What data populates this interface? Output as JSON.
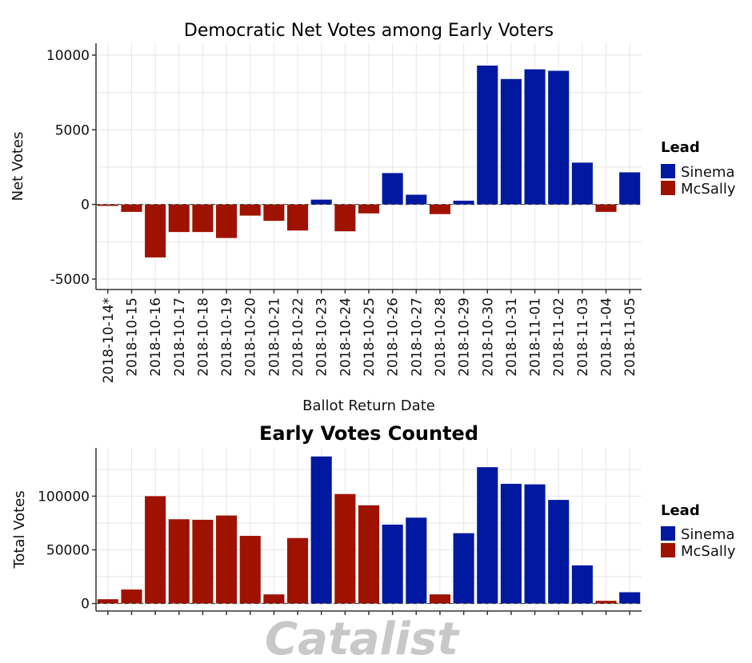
{
  "colors": {
    "Sinema": "#0019a0",
    "McSally": "#a01200",
    "grid": "#e6e6e6",
    "axis": "#333333"
  },
  "legend": {
    "title": "Lead",
    "entries": [
      {
        "name": "Sinema",
        "color": "#0019a0"
      },
      {
        "name": "McSally",
        "color": "#a01200"
      }
    ]
  },
  "watermark": "Catalist",
  "chart_data": [
    {
      "type": "bar",
      "title": "Democratic Net Votes among Early Voters",
      "xlabel": "Ballot Return Date",
      "ylabel": "Net Votes",
      "ylim": [
        -5700,
        10800
      ],
      "yticks": [
        -5000,
        0,
        5000,
        10000
      ],
      "yticklabels": [
        "-5000",
        "0",
        "5000",
        "10000"
      ],
      "grid": true,
      "legend_position": "right",
      "categories": [
        "2018-10-14*",
        "2018-10-15",
        "2018-10-16",
        "2018-10-17",
        "2018-10-18",
        "2018-10-19",
        "2018-10-20",
        "2018-10-21",
        "2018-10-22",
        "2018-10-23",
        "2018-10-24",
        "2018-10-25",
        "2018-10-26",
        "2018-10-27",
        "2018-10-28",
        "2018-10-29",
        "2018-10-30",
        "2018-10-31",
        "2018-11-01",
        "2018-11-02",
        "2018-11-03",
        "2018-11-04",
        "2018-11-05"
      ],
      "values": [
        -100,
        -500,
        -3550,
        -1850,
        -1850,
        -2250,
        -750,
        -1100,
        -1750,
        320,
        -1800,
        -600,
        2100,
        650,
        -650,
        250,
        9300,
        8400,
        9050,
        8950,
        2800,
        -500,
        2150
      ],
      "lead": [
        "McSally",
        "McSally",
        "McSally",
        "McSally",
        "McSally",
        "McSally",
        "McSally",
        "McSally",
        "McSally",
        "Sinema",
        "McSally",
        "McSally",
        "Sinema",
        "Sinema",
        "McSally",
        "Sinema",
        "Sinema",
        "Sinema",
        "Sinema",
        "Sinema",
        "Sinema",
        "McSally",
        "Sinema"
      ]
    },
    {
      "type": "bar",
      "title": "Early Votes Counted",
      "xlabel": "",
      "ylabel": "Total Votes",
      "ylim": [
        -7000,
        145000
      ],
      "yticks": [
        0,
        50000,
        100000
      ],
      "yticklabels": [
        "0",
        "50000",
        "100000"
      ],
      "grid": true,
      "legend_position": "right",
      "categories": [
        "2018-10-14*",
        "2018-10-15",
        "2018-10-16",
        "2018-10-17",
        "2018-10-18",
        "2018-10-19",
        "2018-10-20",
        "2018-10-21",
        "2018-10-22",
        "2018-10-23",
        "2018-10-24",
        "2018-10-25",
        "2018-10-26",
        "2018-10-27",
        "2018-10-28",
        "2018-10-29",
        "2018-10-30",
        "2018-10-31",
        "2018-11-01",
        "2018-11-02",
        "2018-11-03",
        "2018-11-04",
        "2018-11-05"
      ],
      "values": [
        4000,
        13000,
        100000,
        78500,
        78000,
        82000,
        63000,
        8500,
        61000,
        137000,
        102000,
        91500,
        73500,
        80000,
        8500,
        65500,
        127000,
        111500,
        111000,
        96500,
        35500,
        2500,
        10500
      ],
      "lead": [
        "McSally",
        "McSally",
        "McSally",
        "McSally",
        "McSally",
        "McSally",
        "McSally",
        "McSally",
        "McSally",
        "Sinema",
        "McSally",
        "McSally",
        "Sinema",
        "Sinema",
        "McSally",
        "Sinema",
        "Sinema",
        "Sinema",
        "Sinema",
        "Sinema",
        "Sinema",
        "McSally",
        "Sinema"
      ]
    }
  ]
}
